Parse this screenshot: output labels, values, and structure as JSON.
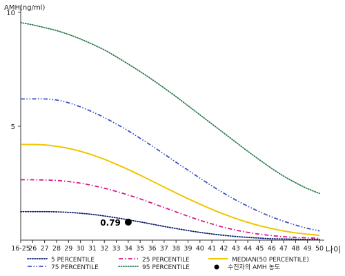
{
  "chart_data": {
    "type": "line",
    "ylabel": "AMH(ng/ml)",
    "xlabel": "나이",
    "ylim": [
      0,
      10.3
    ],
    "yticks": [
      10,
      5
    ],
    "categories": [
      "16-25",
      "26",
      "27",
      "28",
      "29",
      "30",
      "31",
      "32",
      "33",
      "34",
      "35",
      "36",
      "37",
      "38",
      "39",
      "40",
      "41",
      "42",
      "43",
      "44",
      "45",
      "46",
      "47",
      "48",
      "49",
      "50"
    ],
    "series": [
      {
        "name": "5 PERCENTILE",
        "color": "#0b1a6b",
        "dash": "dotted",
        "values": [
          1.25,
          1.25,
          1.25,
          1.24,
          1.22,
          1.18,
          1.13,
          1.06,
          0.98,
          0.89,
          0.8,
          0.7,
          0.6,
          0.51,
          0.42,
          0.34,
          0.27,
          0.21,
          0.16,
          0.12,
          0.09,
          0.06,
          0.05,
          0.04,
          0.03,
          0.03
        ]
      },
      {
        "name": "25 PERCENTILE",
        "color": "#d6168d",
        "dash": "dashdot",
        "values": [
          2.65,
          2.65,
          2.64,
          2.62,
          2.57,
          2.5,
          2.4,
          2.28,
          2.14,
          1.98,
          1.81,
          1.62,
          1.43,
          1.24,
          1.05,
          0.87,
          0.71,
          0.56,
          0.44,
          0.34,
          0.26,
          0.2,
          0.15,
          0.12,
          0.1,
          0.08
        ]
      },
      {
        "name": "MEDIAN(50 PERCENTILE)",
        "color": "#f2c500",
        "dash": "solid",
        "values": [
          4.2,
          4.2,
          4.18,
          4.12,
          4.03,
          3.9,
          3.74,
          3.55,
          3.33,
          3.1,
          2.85,
          2.59,
          2.33,
          2.07,
          1.82,
          1.58,
          1.35,
          1.14,
          0.95,
          0.78,
          0.63,
          0.51,
          0.4,
          0.32,
          0.26,
          0.21
        ]
      },
      {
        "name": "75 PERCENTILE",
        "color": "#3a52c4",
        "dash": "dashdotdot",
        "values": [
          6.2,
          6.2,
          6.2,
          6.15,
          6.03,
          5.85,
          5.63,
          5.38,
          5.1,
          4.8,
          4.47,
          4.13,
          3.78,
          3.42,
          3.07,
          2.72,
          2.38,
          2.06,
          1.76,
          1.49,
          1.24,
          1.02,
          0.83,
          0.66,
          0.52,
          0.4
        ]
      },
      {
        "name": "95 PERCENTILE",
        "color": "#2e7d4f",
        "dash": "dotted",
        "values": [
          9.55,
          9.45,
          9.33,
          9.2,
          9.03,
          8.83,
          8.6,
          8.35,
          8.05,
          7.73,
          7.4,
          7.05,
          6.68,
          6.3,
          5.9,
          5.5,
          5.1,
          4.7,
          4.3,
          3.9,
          3.52,
          3.15,
          2.81,
          2.52,
          2.26,
          2.05
        ]
      }
    ],
    "marker": {
      "label": "수진자의 AMH 농도",
      "x": "34",
      "y": 0.79,
      "value_label": "0.79"
    },
    "legend_position": "bottom",
    "grid": false
  }
}
